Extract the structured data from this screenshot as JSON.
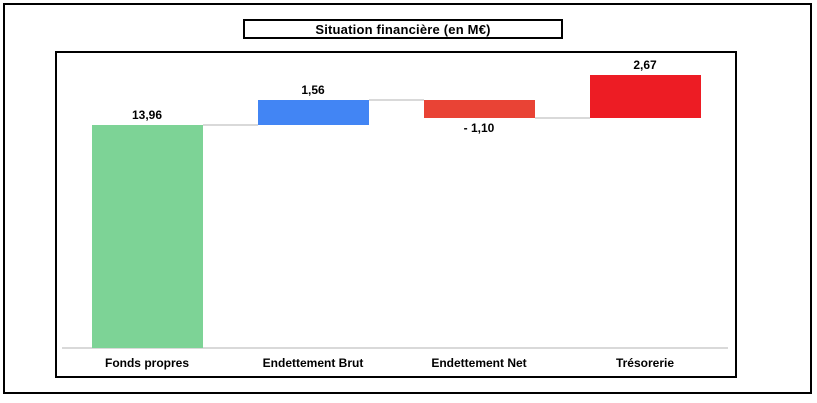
{
  "chart_data": {
    "type": "bar",
    "subtype": "waterfall",
    "title": "Situation financière (en M€)",
    "categories": [
      "Fonds propres",
      "Endettement Brut",
      "Endettement Net",
      "Trésorerie"
    ],
    "bars": [
      {
        "category": "Fonds propres",
        "label": "13,96",
        "value": 13.96,
        "start": 0,
        "end": 13.96,
        "color": "#7DD396",
        "label_side": "above"
      },
      {
        "category": "Endettement Brut",
        "label": "1,56",
        "value": 1.56,
        "start": 13.96,
        "end": 15.52,
        "color": "#4285F4",
        "label_side": "above"
      },
      {
        "category": "Endettement Net",
        "label": "- 1,10",
        "value": -1.1,
        "start": 15.52,
        "end": 14.42,
        "color": "#E94335",
        "label_side": "below"
      },
      {
        "category": "Trésorerie",
        "label": "2,67",
        "value": 2.67,
        "start": 14.42,
        "end": 17.09,
        "color": "#ED1C24",
        "label_side": "above"
      }
    ],
    "connector_levels": [
      13.96,
      15.52,
      14.42
    ],
    "colors": {
      "connector": "#D9D9D9",
      "axis_line": "#D9D9D9",
      "border": "#000000",
      "background": "#FFFFFF",
      "text": "#000000"
    },
    "axis": {
      "grid": false,
      "legend": false,
      "y_axis_labels_visible": false,
      "baseline_value": 0,
      "ylim": [
        0,
        18.6
      ]
    }
  }
}
